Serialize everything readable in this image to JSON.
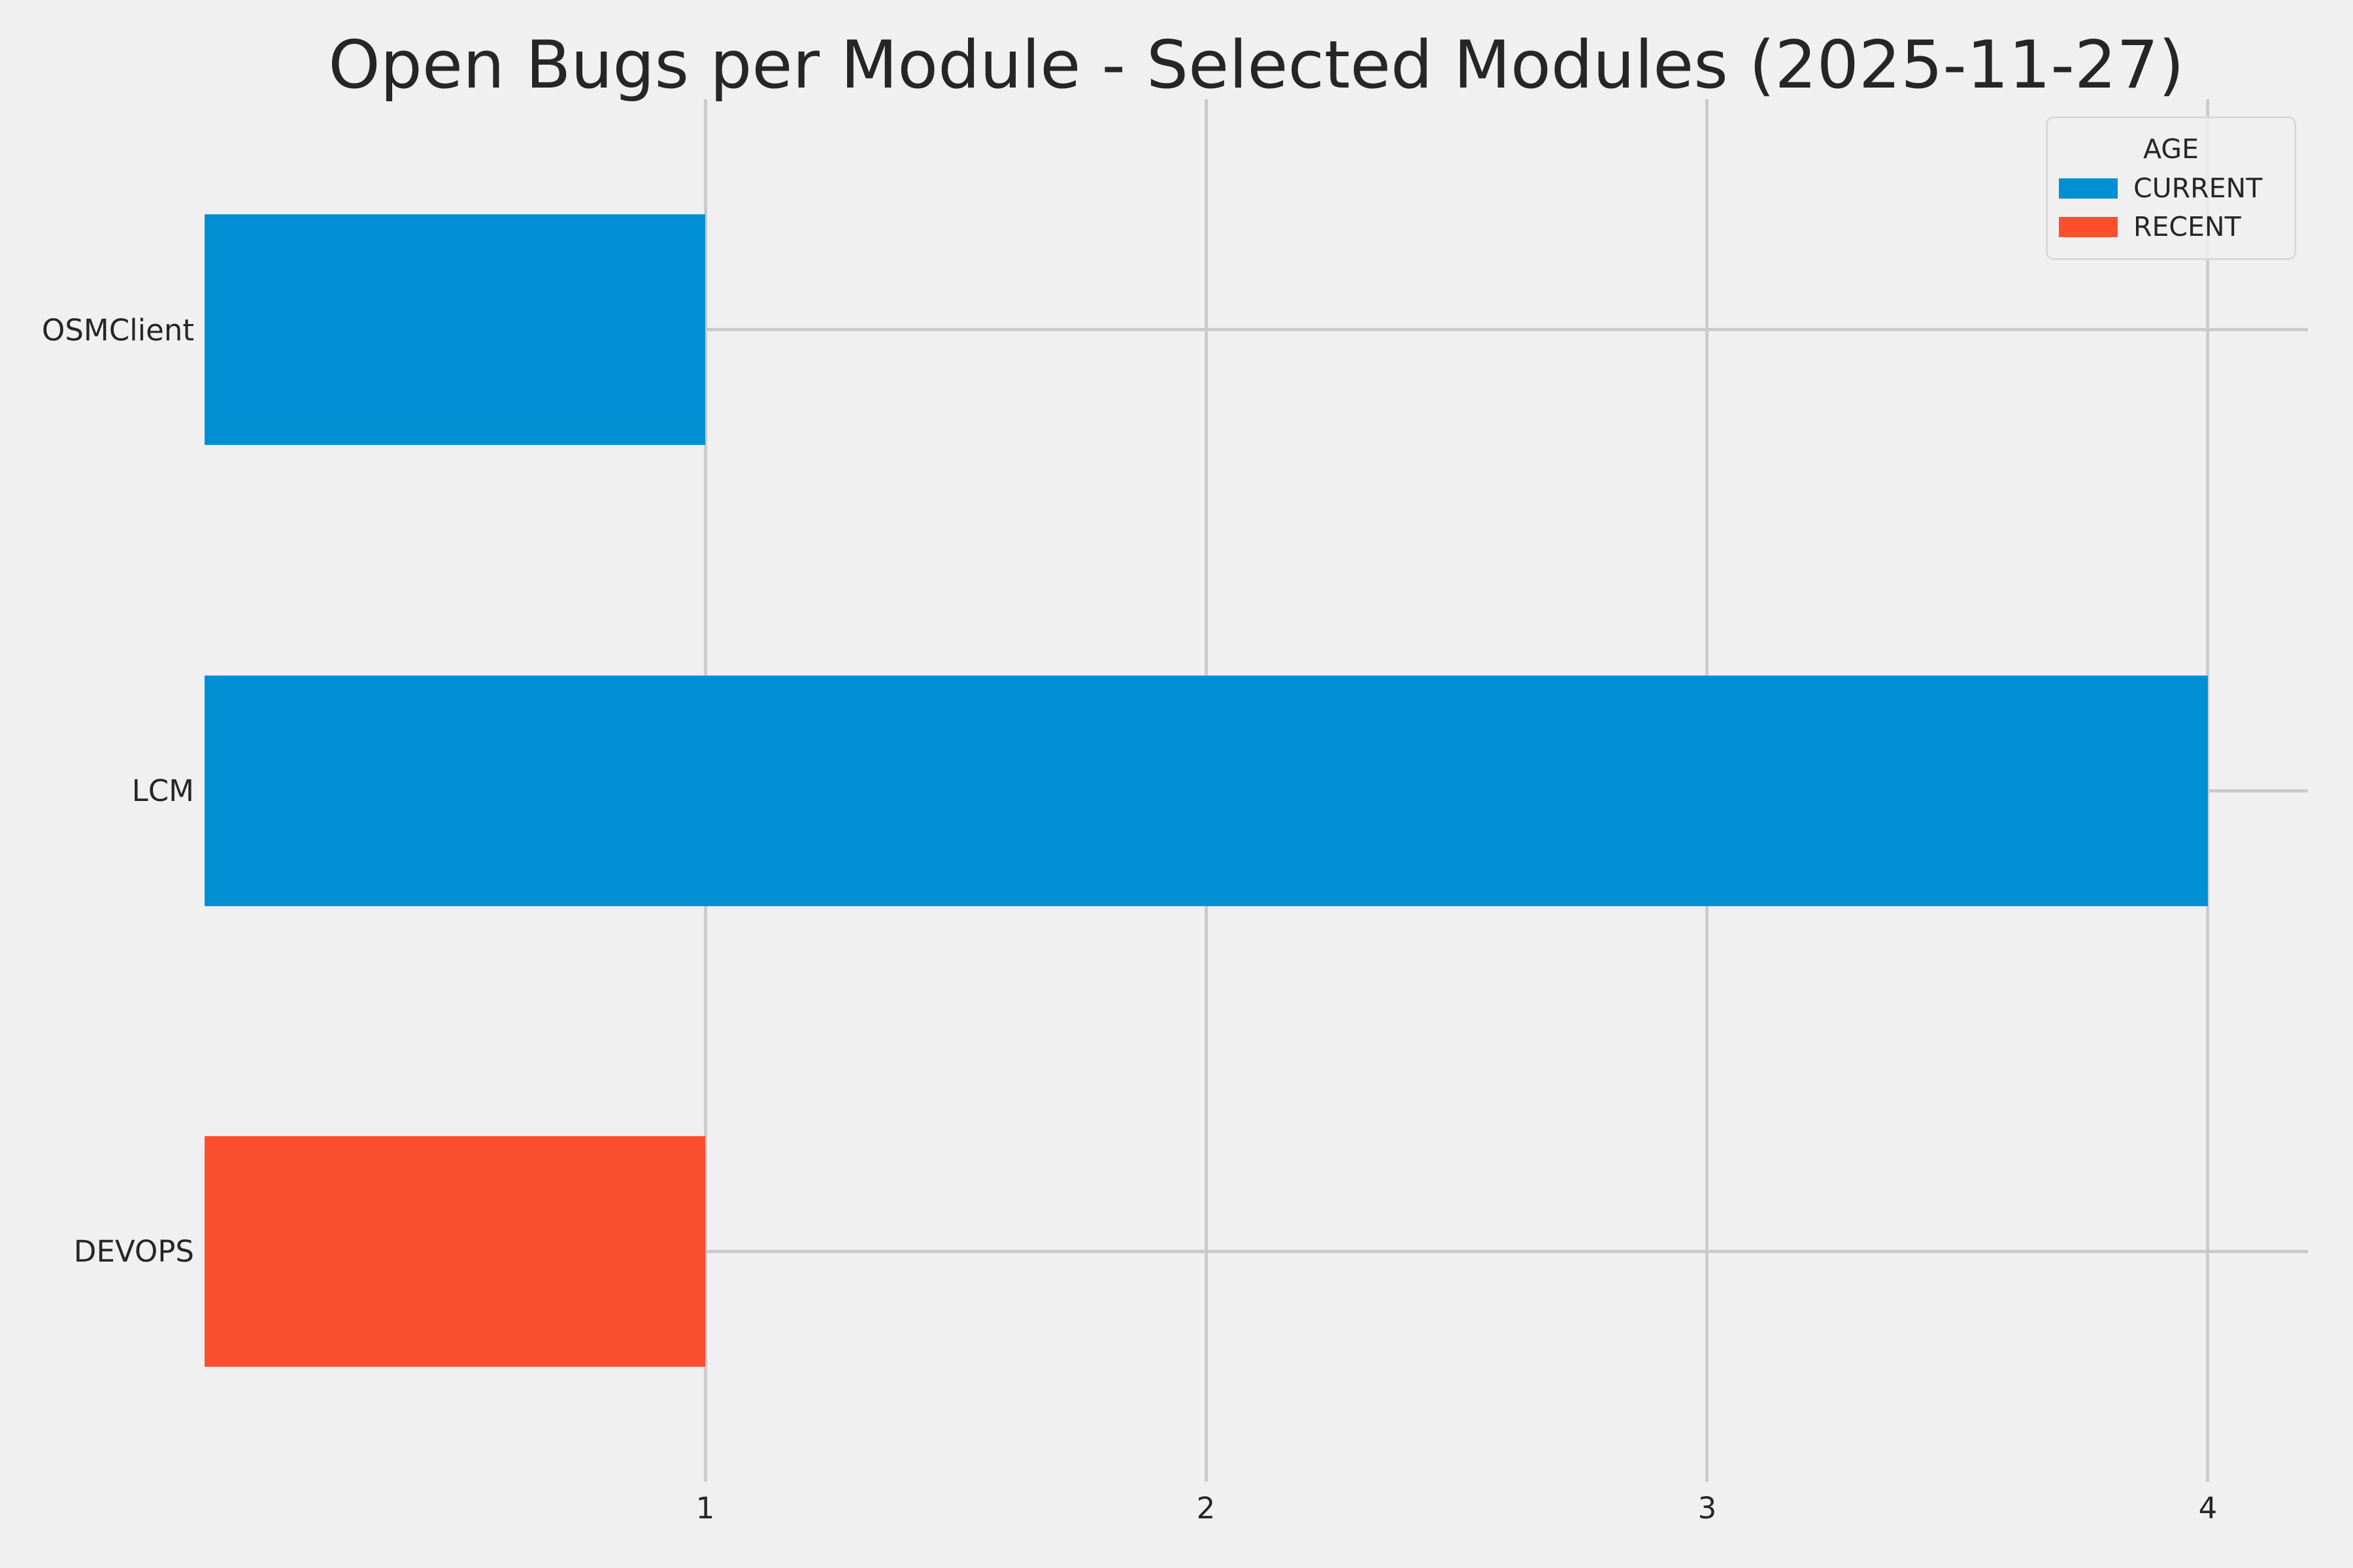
{
  "title": "Open Bugs per Module - Selected Modules (2025-11-27)",
  "colors": {
    "background": "#f0f0f0",
    "grid": "#cbcbcb",
    "text": "#262626",
    "current": "#008fd5",
    "recent": "#fc4f30"
  },
  "legend": {
    "title": "AGE",
    "entries": [
      {
        "label": "CURRENT",
        "color": "#008fd5"
      },
      {
        "label": "RECENT",
        "color": "#fc4f30"
      }
    ]
  },
  "chart_data": {
    "type": "bar",
    "orientation": "horizontal",
    "title": "Open Bugs per Module - Selected Modules (2025-11-27)",
    "categories": [
      "OSMClient",
      "LCM",
      "DEVOPS"
    ],
    "series_field": "AGE",
    "bars": [
      {
        "category": "OSMClient",
        "value": 1,
        "series": "CURRENT"
      },
      {
        "category": "LCM",
        "value": 4,
        "series": "CURRENT"
      },
      {
        "category": "DEVOPS",
        "value": 1,
        "series": "RECENT"
      }
    ],
    "xlabel": "",
    "ylabel": "",
    "xlim": [
      0,
      4.2
    ],
    "xticks": [
      1,
      2,
      3,
      4
    ],
    "grid": true,
    "legend_position": "upper right",
    "legend_title": "AGE"
  }
}
